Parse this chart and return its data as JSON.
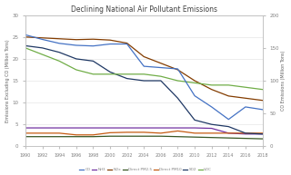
{
  "title": "Declining National Air Pollutant Emissions",
  "years": [
    1990,
    1992,
    1994,
    1996,
    1998,
    2000,
    2002,
    2004,
    2006,
    2008,
    2010,
    2012,
    2014,
    2016,
    2018
  ],
  "CO_right": [
    170,
    163,
    157,
    154,
    153,
    156,
    156,
    122,
    120,
    118,
    77,
    60,
    41,
    60,
    56
  ],
  "NH3": [
    4.2,
    4.2,
    4.2,
    4.2,
    4.2,
    4.2,
    4.2,
    4.2,
    4.2,
    4.2,
    4.2,
    4.1,
    3.0,
    2.8,
    2.8
  ],
  "NOx": [
    25.0,
    24.8,
    24.6,
    24.4,
    24.5,
    24.3,
    23.6,
    20.5,
    19.0,
    17.5,
    15.0,
    13.0,
    11.5,
    11.0,
    10.5
  ],
  "DirectPM25": [
    2.2,
    2.2,
    2.2,
    2.2,
    2.2,
    2.3,
    2.3,
    2.3,
    2.3,
    2.2,
    2.1,
    2.0,
    1.9,
    1.8,
    1.7
  ],
  "DirectPM10": [
    3.0,
    3.0,
    3.0,
    2.6,
    2.6,
    3.1,
    3.2,
    3.2,
    3.0,
    3.5,
    3.0,
    3.0,
    3.0,
    3.0,
    3.0
  ],
  "SO2": [
    23.0,
    22.5,
    21.5,
    20.0,
    19.5,
    17.0,
    15.5,
    15.0,
    15.0,
    11.0,
    6.0,
    5.0,
    4.5,
    3.0,
    2.8
  ],
  "VOC": [
    22.5,
    21.0,
    19.5,
    17.5,
    16.5,
    16.5,
    16.5,
    16.5,
    16.0,
    15.0,
    14.5,
    14.0,
    14.0,
    13.5,
    13.0
  ],
  "ylabel_left": "Emissions Excluding CO (Million Tons)",
  "ylabel_right": "CO Emissions (Million Tons)",
  "ylim_left": [
    0,
    30
  ],
  "ylim_right": [
    0,
    200
  ],
  "yticks_left": [
    0,
    5,
    10,
    15,
    20,
    25,
    30
  ],
  "yticks_right": [
    0,
    50,
    100,
    150,
    200
  ],
  "colors": {
    "CO": "#4472c4",
    "NH3": "#7030a0",
    "NOx": "#833c00",
    "DirectPM25": "#375623",
    "DirectPM10": "#c55a11",
    "SO2": "#1f3864",
    "VOC": "#70ad47"
  },
  "background_color": "#ffffff",
  "spine_color": "#c0c0c0",
  "tick_color": "#808080",
  "title_color": "#404040",
  "label_color": "#606060"
}
